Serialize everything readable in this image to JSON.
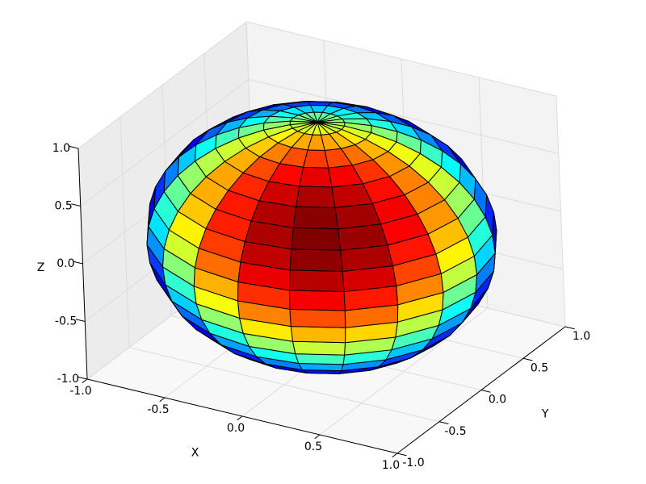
{
  "chart_data": {
    "type": "surface3d",
    "x_label": "X",
    "y_label": "Y",
    "z_label": "Z",
    "xlim": [
      -1,
      1
    ],
    "ylim": [
      -1,
      1
    ],
    "zlim": [
      -1,
      1
    ],
    "xticks": [
      {
        "value": -1,
        "label": "-1.0"
      },
      {
        "value": -0.5,
        "label": "-0.5"
      },
      {
        "value": 0,
        "label": "0.0"
      },
      {
        "value": 0.5,
        "label": "0.5"
      },
      {
        "value": 1,
        "label": "1.0"
      }
    ],
    "yticks": [
      {
        "value": -1,
        "label": "-1.0"
      },
      {
        "value": -0.5,
        "label": "-0.5"
      },
      {
        "value": 0,
        "label": "0.0"
      },
      {
        "value": 0.5,
        "label": "0.5"
      },
      {
        "value": 1,
        "label": "1.0"
      }
    ],
    "zticks": [
      {
        "value": -1,
        "label": "-1.0"
      },
      {
        "value": -0.5,
        "label": "-0.5"
      },
      {
        "value": 0,
        "label": "0.0"
      },
      {
        "value": 0.5,
        "label": "0.5"
      },
      {
        "value": 1,
        "label": "1.0"
      }
    ],
    "grid": true,
    "surface": {
      "colormap": "jet",
      "edgecolor": "#000000",
      "u_deg": [
        0,
        18,
        36,
        54,
        72,
        90,
        108,
        126,
        144,
        162,
        180,
        198,
        216,
        234,
        252,
        270,
        288,
        306,
        324,
        342,
        360
      ],
      "v_deg": [
        0,
        9,
        18,
        27,
        36,
        45,
        54,
        63,
        72,
        81,
        90,
        99,
        108,
        117,
        126,
        135,
        144,
        153,
        162,
        171,
        180
      ]
    }
  }
}
